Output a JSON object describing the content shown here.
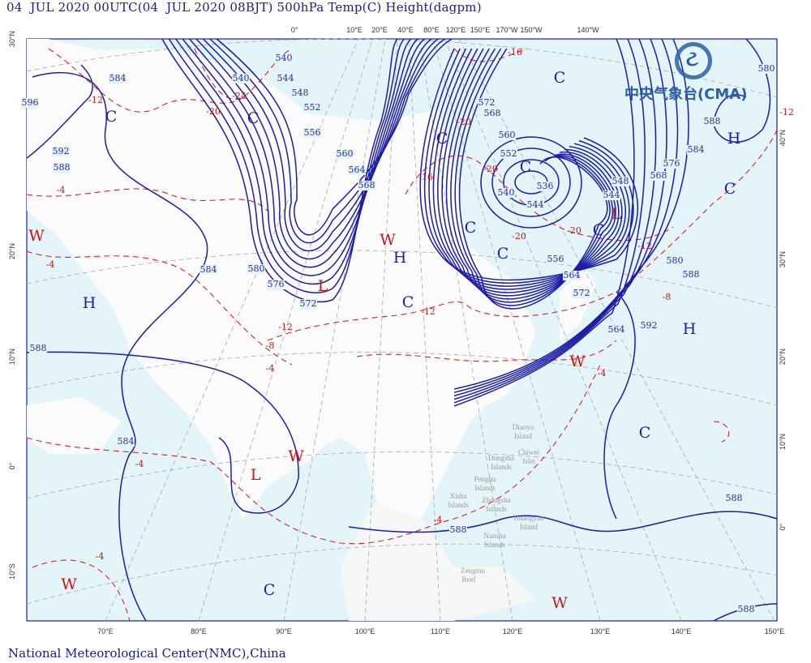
{
  "title": "04  JUL 2020 00UTC(04  JUL 2020 08BJT) 500hPa Temp(C) Height(dagpm)",
  "footer": "National Meteorological Center(NMC),China",
  "logo": {
    "text": "中央气象台(CMA)"
  },
  "colors": {
    "ocean": "#e4f5f9",
    "land": "#fbfbfb",
    "height_contour": "#1c1ca8",
    "temp_contour": "#e02020",
    "graticule": "#aaaaaa"
  },
  "axes": {
    "left": [
      "30°N",
      "20°N",
      "10°N",
      "0°",
      "10°S"
    ],
    "right": [
      "40°N",
      "30°N",
      "20°N",
      "10°N",
      "0°"
    ],
    "bottom": [
      "70°E",
      "80°E",
      "90°E",
      "100°E",
      "110°E",
      "120°E",
      "130°E",
      "140°E",
      "150°E"
    ],
    "top": [
      "0°",
      "10°E",
      "20°E",
      "40°E",
      "80°E",
      "120°E",
      "150°E",
      "170°W",
      "150°W",
      "140°W"
    ]
  },
  "height_labels": [
    "596",
    "584",
    "592",
    "588",
    "540",
    "540",
    "544",
    "548",
    "552",
    "556",
    "560",
    "564",
    "568",
    "580",
    "576",
    "572",
    "584",
    "588",
    "584",
    "572",
    "568",
    "560",
    "552",
    "548",
    "544",
    "536",
    "540",
    "544",
    "556",
    "564",
    "572",
    "580",
    "588",
    "592",
    "564",
    "568",
    "576",
    "584",
    "588",
    "580",
    "588",
    "588",
    "588"
  ],
  "temp_labels": [
    "-12",
    "-20",
    "-24",
    "-16",
    "-20",
    "-16",
    "-20",
    "-20",
    "-20",
    "-12",
    "-8",
    "-12",
    "-12",
    "-8",
    "-4",
    "-4",
    "-4",
    "-4",
    "-4",
    "-4",
    "-4",
    "-12"
  ],
  "systems": [
    {
      "t": "C",
      "kind": "cold"
    },
    {
      "t": "C",
      "kind": "cold"
    },
    {
      "t": "C",
      "kind": "cold"
    },
    {
      "t": "C",
      "kind": "cold"
    },
    {
      "t": "H",
      "kind": "high"
    },
    {
      "t": "C",
      "kind": "cold"
    },
    {
      "t": "C",
      "kind": "cold"
    },
    {
      "t": "C",
      "kind": "cold"
    },
    {
      "t": "C",
      "kind": "cold"
    },
    {
      "t": "L",
      "kind": "low"
    },
    {
      "t": "C",
      "kind": "cold"
    },
    {
      "t": "W",
      "kind": "warm"
    },
    {
      "t": "H",
      "kind": "high"
    },
    {
      "t": "L",
      "kind": "low"
    },
    {
      "t": "W",
      "kind": "warm"
    },
    {
      "t": "H",
      "kind": "high"
    },
    {
      "t": "C",
      "kind": "cold"
    },
    {
      "t": "H",
      "kind": "high"
    },
    {
      "t": "W",
      "kind": "warm"
    },
    {
      "t": "C",
      "kind": "cold"
    },
    {
      "t": "W",
      "kind": "warm"
    },
    {
      "t": "L",
      "kind": "low"
    },
    {
      "t": "W",
      "kind": "warm"
    },
    {
      "t": "C",
      "kind": "cold"
    },
    {
      "t": "W",
      "kind": "warm"
    }
  ],
  "islands": [
    "Diaoyu",
    "Island",
    "Chiwei",
    "Islet",
    "Dongsha",
    "Islands",
    "Penghu",
    "Islands",
    "Xisha",
    "Islands",
    "Zhongsha",
    "Islands",
    "Huangyan",
    "Island",
    "Nansha",
    "Islands",
    "Zengmu",
    "Reef"
  ]
}
